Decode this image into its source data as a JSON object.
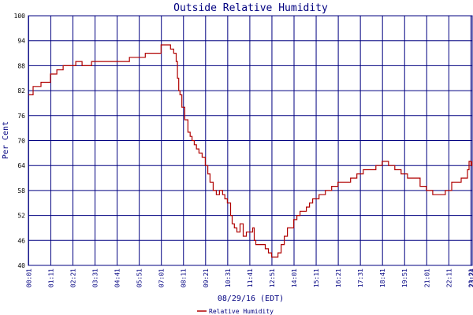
{
  "chart_data": {
    "type": "line",
    "title": "Outside Relative Humidity",
    "xlabel": "08/29/16 (EDT)",
    "ylabel": "Per Cent",
    "ylim": [
      40,
      100
    ],
    "yticks": [
      "40",
      "46",
      "52",
      "58",
      "64",
      "70",
      "76",
      "82",
      "88",
      "94",
      "100"
    ],
    "xticks": [
      "00:01",
      "01:11",
      "02:21",
      "03:31",
      "04:41",
      "05:51",
      "07:01",
      "08:11",
      "09:21",
      "10:31",
      "11:41",
      "12:51",
      "14:01",
      "15:11",
      "16:21",
      "17:31",
      "18:41",
      "19:51",
      "21:01",
      "22:11",
      "23:21",
      "23:24"
    ],
    "grid": true,
    "legend_position": "bottom-center",
    "colors": {
      "series": "#b00000",
      "grid": "#000080",
      "frame": "#000080"
    },
    "series": [
      {
        "name": "Relative Humidity",
        "x_minutes": [
          1,
          15,
          40,
          70,
          90,
          110,
          150,
          170,
          200,
          250,
          280,
          320,
          350,
          370,
          420,
          440,
          450,
          460,
          468,
          472,
          476,
          480,
          486,
          495,
          505,
          512,
          518,
          525,
          532,
          540,
          550,
          560,
          568,
          575,
          585,
          595,
          605,
          615,
          622,
          630,
          640,
          645,
          652,
          660,
          670,
          680,
          690,
          700,
          710,
          715,
          720,
          730,
          740,
          750,
          760,
          770,
          780,
          790,
          800,
          810,
          820,
          840,
          850,
          860,
          870,
          880,
          890,
          900,
          920,
          940,
          960,
          980,
          1000,
          1020,
          1040,
          1060,
          1080,
          1100,
          1120,
          1140,
          1160,
          1180,
          1200,
          1220,
          1240,
          1260,
          1280,
          1300,
          1320,
          1340,
          1370,
          1390,
          1395,
          1401,
          1404
        ],
        "values": [
          81,
          83,
          84,
          86,
          87,
          88,
          89,
          88,
          89,
          89,
          89,
          90,
          90,
          91,
          93,
          93,
          92,
          91,
          89,
          85,
          82,
          81,
          78,
          75,
          72,
          71,
          70,
          69,
          68,
          67,
          66,
          64,
          62,
          60,
          58,
          57,
          58,
          57,
          56,
          55,
          52,
          50,
          49,
          48,
          50,
          47,
          48,
          48,
          49,
          46,
          45,
          45,
          45,
          44,
          43,
          42,
          42,
          43,
          45,
          47,
          49,
          51,
          52,
          53,
          53,
          54,
          55,
          56,
          57,
          58,
          59,
          60,
          60,
          61,
          62,
          63,
          63,
          64,
          65,
          64,
          63,
          62,
          61,
          61,
          59,
          58,
          57,
          57,
          58,
          60,
          61,
          63,
          65,
          64,
          65
        ]
      }
    ]
  }
}
